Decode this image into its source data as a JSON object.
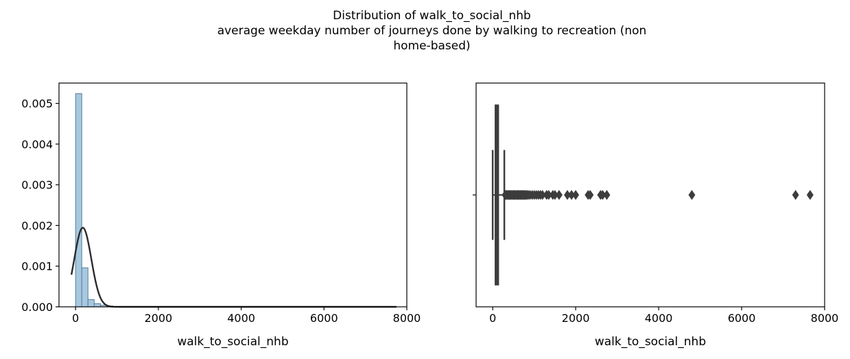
{
  "figure": {
    "title_lines": [
      "Distribution of walk_to_social_nhb",
      "average weekday number of journeys done by walking to recreation (non",
      "home-based)"
    ]
  },
  "chart_data": [
    {
      "type": "histogram",
      "xlabel": "walk_to_social_nhb",
      "ylabel": "",
      "xlim": [
        -400,
        8000
      ],
      "ylim": [
        0,
        0.0055
      ],
      "x_ticks": [
        0,
        2000,
        4000,
        6000,
        8000
      ],
      "x_tick_labels": [
        "0",
        "2000",
        "4000",
        "6000",
        "8000"
      ],
      "y_ticks": [
        0,
        0.001,
        0.002,
        0.003,
        0.004,
        0.005
      ],
      "y_tick_labels": [
        "0.000",
        "0.001",
        "0.002",
        "0.003",
        "0.004",
        "0.005"
      ],
      "bin_width": 150,
      "bins": [
        {
          "x0": 0,
          "x1": 150,
          "density": 0.00524
        },
        {
          "x0": 150,
          "x1": 300,
          "density": 0.00096
        },
        {
          "x0": 300,
          "x1": 450,
          "density": 0.00018
        },
        {
          "x0": 450,
          "x1": 600,
          "density": 8e-05
        },
        {
          "x0": 600,
          "x1": 750,
          "density": 4e-05
        },
        {
          "x0": 750,
          "x1": 900,
          "density": 2e-05
        }
      ],
      "fit_curve": {
        "type": "normal",
        "mean": 175,
        "std": 205,
        "x_range": [
          -100,
          7750
        ]
      },
      "colors": {
        "bar_fill": "#a6c8e0",
        "bar_edge": "#5a7f99",
        "curve": "#2b2b2b"
      }
    },
    {
      "type": "boxplot",
      "xlabel": "walk_to_social_nhb",
      "xlim": [
        -400,
        8000
      ],
      "x_ticks": [
        0,
        2000,
        4000,
        6000,
        8000
      ],
      "x_tick_labels": [
        "0",
        "2000",
        "4000",
        "6000",
        "8000"
      ],
      "min": 0,
      "q1": 60,
      "median": 100,
      "q3": 140,
      "whisker_high": 280,
      "outliers": [
        300,
        320,
        340,
        360,
        380,
        400,
        420,
        440,
        460,
        480,
        500,
        520,
        540,
        560,
        580,
        600,
        620,
        640,
        660,
        680,
        700,
        720,
        740,
        760,
        780,
        800,
        830,
        860,
        900,
        950,
        1000,
        1050,
        1100,
        1150,
        1200,
        1300,
        1350,
        1450,
        1500,
        1600,
        1800,
        1900,
        2000,
        2300,
        2350,
        2600,
        2650,
        2750,
        4800,
        7300,
        7650
      ],
      "colors": {
        "box": "#3d3d3d",
        "outlier": "#3d3d3d"
      }
    }
  ]
}
